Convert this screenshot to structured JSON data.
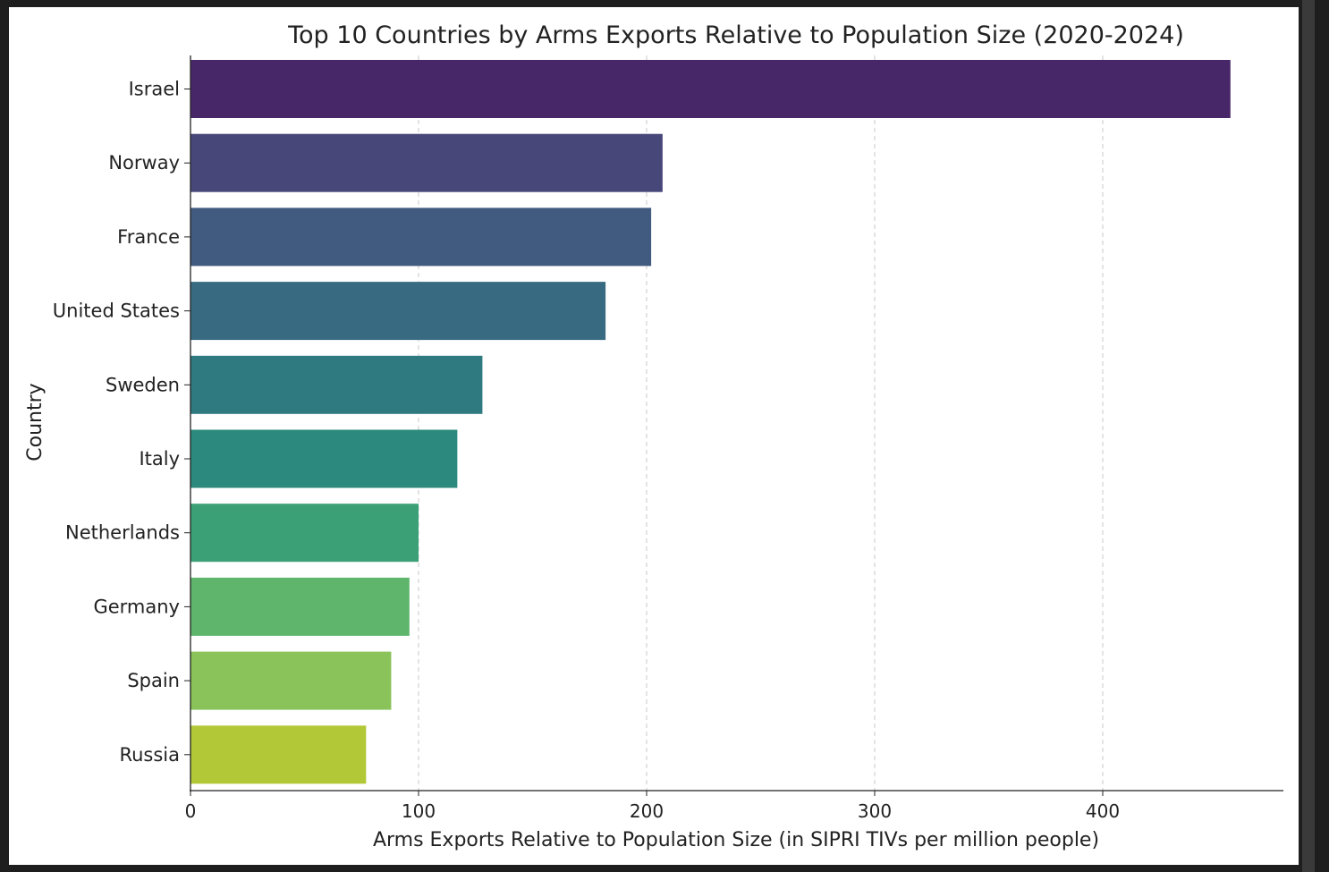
{
  "chart_data": {
    "type": "bar",
    "orientation": "horizontal",
    "title": "Top 10 Countries by Arms Exports Relative to Population Size (2020-2024)",
    "xlabel": "Arms Exports Relative to Population Size (in SIPRI TIVs per million people)",
    "ylabel": "Country",
    "categories": [
      "Israel",
      "Norway",
      "France",
      "United States",
      "Sweden",
      "Italy",
      "Netherlands",
      "Germany",
      "Spain",
      "Russia"
    ],
    "values": [
      456,
      207,
      202,
      182,
      128,
      117,
      100,
      96,
      88,
      77
    ],
    "colors": [
      "#482768",
      "#48477a",
      "#415b80",
      "#386b81",
      "#2f7a80",
      "#2b897d",
      "#3ca077",
      "#5eb56b",
      "#8ac35a",
      "#b3c836"
    ],
    "xlim": [
      0,
      480
    ],
    "xticks": [
      "0",
      "100",
      "200",
      "300",
      "400"
    ],
    "grid": "x-dashed",
    "legend": "none"
  }
}
